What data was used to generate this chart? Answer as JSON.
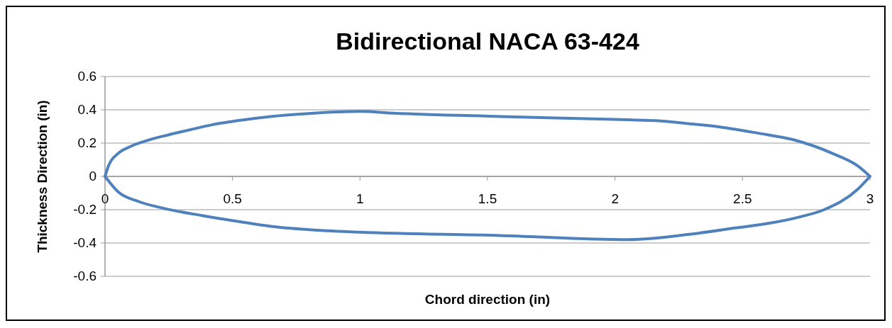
{
  "chart_data": {
    "type": "line",
    "title": "Bidirectional NACA 63-424",
    "xlabel": "Chord direction (in)",
    "ylabel": "Thickness Direction (in)",
    "xlim": [
      0,
      3
    ],
    "xticks": [
      0,
      0.5,
      1,
      1.5,
      2,
      2.5,
      3
    ],
    "ylim": [
      -0.6,
      0.6
    ],
    "yticks": [
      -0.6,
      -0.4,
      -0.2,
      0,
      0.2,
      0.4,
      0.6
    ],
    "grid": "y",
    "marker": "none",
    "line_style": "solid",
    "series": [
      {
        "color": "#4f81bd",
        "x": [
          0,
          0.014,
          0.053,
          0.1,
          0.174,
          0.25,
          0.333,
          0.42,
          0.52,
          0.65,
          0.8,
          1.0,
          1.13,
          1.55,
          2.05,
          2.16,
          2.3,
          2.42,
          2.56,
          2.7,
          2.85,
          2.95,
          3
        ],
        "values": [
          0,
          0.065,
          0.14,
          0.18,
          0.22,
          0.25,
          0.28,
          0.31,
          0.335,
          0.36,
          0.378,
          0.39,
          0.38,
          0.36,
          0.34,
          0.335,
          0.315,
          0.295,
          0.26,
          0.22,
          0.14,
          0.065,
          0
        ]
      },
      {
        "color": "#4f81bd",
        "x": [
          0,
          0.053,
          0.13,
          0.24,
          0.38,
          0.52,
          0.65,
          0.8,
          1.0,
          1.55,
          2.05,
          2.33,
          2.47,
          2.61,
          2.72,
          2.82,
          2.95,
          3
        ],
        "values": [
          0,
          -0.095,
          -0.15,
          -0.195,
          -0.235,
          -0.27,
          -0.3,
          -0.32,
          -0.335,
          -0.355,
          -0.38,
          -0.34,
          -0.31,
          -0.28,
          -0.245,
          -0.2,
          -0.08,
          0
        ]
      }
    ]
  }
}
